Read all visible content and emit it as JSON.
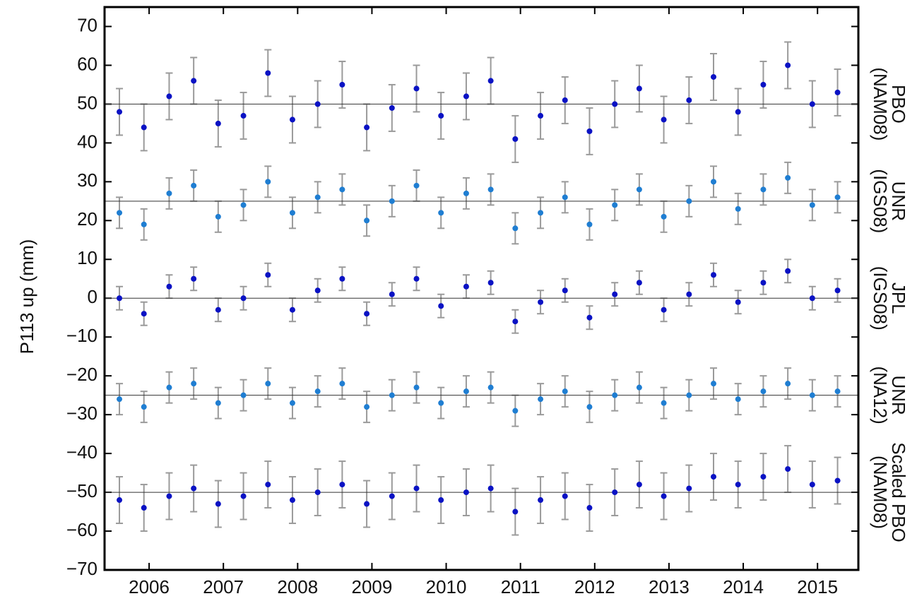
{
  "chart_data": {
    "type": "scatter",
    "ylabel": "P113 up (mm)",
    "xlim": [
      2005.4,
      2015.55
    ],
    "ylim": [
      -70,
      75
    ],
    "xticks": [
      2006,
      2007,
      2008,
      2009,
      2010,
      2011,
      2012,
      2013,
      2014,
      2015
    ],
    "yticks": [
      {
        "value": -70,
        "label": "−70"
      },
      {
        "value": -60,
        "label": "−60"
      },
      {
        "value": -50,
        "label": "−50"
      },
      {
        "value": -40,
        "label": "−40"
      },
      {
        "value": -30,
        "label": "−30"
      },
      {
        "value": -20,
        "label": "−20"
      },
      {
        "value": -10,
        "label": "−10"
      },
      0,
      10,
      20,
      30,
      40,
      50,
      60,
      70
    ],
    "error_color": "#9a9a9a",
    "x": [
      2005.6,
      2005.93,
      2006.27,
      2006.6,
      2006.93,
      2007.27,
      2007.6,
      2007.93,
      2008.27,
      2008.6,
      2008.93,
      2009.27,
      2009.6,
      2009.93,
      2010.27,
      2010.6,
      2010.93,
      2011.27,
      2011.6,
      2011.93,
      2012.27,
      2012.6,
      2012.93,
      2013.27,
      2013.6,
      2013.93,
      2014.27,
      2014.6,
      2014.93,
      2015.27
    ],
    "series": [
      {
        "name": "PBO",
        "frame": "(NAM08)",
        "color": "#0a12c4",
        "baseline": 50,
        "error": 6,
        "values": [
          48,
          44,
          52,
          56,
          45,
          47,
          58,
          46,
          50,
          55,
          44,
          49,
          54,
          47,
          52,
          56,
          41,
          47,
          51,
          43,
          50,
          54,
          46,
          51,
          57,
          48,
          55,
          60,
          50,
          53
        ]
      },
      {
        "name": "UNR",
        "frame": "(IGS08)",
        "color": "#1f7ed2",
        "baseline": 25,
        "error": 4,
        "values": [
          22,
          19,
          27,
          29,
          21,
          24,
          30,
          22,
          26,
          28,
          20,
          25,
          29,
          22,
          27,
          28,
          18,
          22,
          26,
          19,
          24,
          28,
          21,
          25,
          30,
          23,
          28,
          31,
          24,
          26
        ]
      },
      {
        "name": "JPL",
        "frame": "(IGS08)",
        "color": "#0a12c4",
        "baseline": 0,
        "error": 3,
        "values": [
          0,
          -4,
          3,
          5,
          -3,
          0,
          6,
          -3,
          2,
          5,
          -4,
          1,
          5,
          -2,
          3,
          4,
          -6,
          -1,
          2,
          -5,
          1,
          4,
          -3,
          1,
          6,
          -1,
          4,
          7,
          0,
          2
        ]
      },
      {
        "name": "UNR",
        "frame": "(NA12)",
        "color": "#1f7ed2",
        "baseline": -25,
        "error": 4,
        "values": [
          -26,
          -28,
          -23,
          -22,
          -27,
          -25,
          -22,
          -27,
          -24,
          -22,
          -28,
          -25,
          -23,
          -27,
          -24,
          -23,
          -29,
          -26,
          -24,
          -28,
          -25,
          -23,
          -27,
          -25,
          -22,
          -26,
          -24,
          -22,
          -25,
          -24
        ]
      },
      {
        "name": "Scaled PBO",
        "frame": "(NAM08)",
        "color": "#0a12c4",
        "baseline": -50,
        "error": 6,
        "values": [
          -52,
          -54,
          -51,
          -49,
          -53,
          -51,
          -48,
          -52,
          -50,
          -48,
          -53,
          -51,
          -49,
          -52,
          -50,
          -49,
          -55,
          -52,
          -51,
          -54,
          -50,
          -48,
          -51,
          -49,
          -46,
          -48,
          -46,
          -44,
          -48,
          -47
        ]
      }
    ]
  }
}
